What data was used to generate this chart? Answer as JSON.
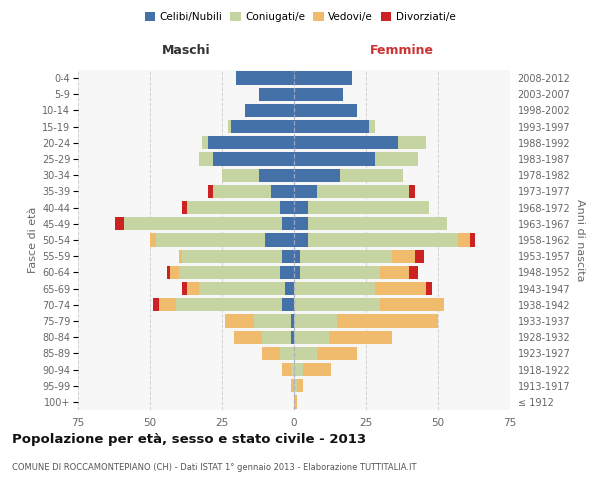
{
  "age_groups": [
    "100+",
    "95-99",
    "90-94",
    "85-89",
    "80-84",
    "75-79",
    "70-74",
    "65-69",
    "60-64",
    "55-59",
    "50-54",
    "45-49",
    "40-44",
    "35-39",
    "30-34",
    "25-29",
    "20-24",
    "15-19",
    "10-14",
    "5-9",
    "0-4"
  ],
  "birth_years": [
    "≤ 1912",
    "1913-1917",
    "1918-1922",
    "1923-1927",
    "1928-1932",
    "1933-1937",
    "1938-1942",
    "1943-1947",
    "1948-1952",
    "1953-1957",
    "1958-1962",
    "1963-1967",
    "1968-1972",
    "1973-1977",
    "1978-1982",
    "1983-1987",
    "1988-1992",
    "1993-1997",
    "1998-2002",
    "2003-2007",
    "2008-2012"
  ],
  "colors": {
    "celibi": "#4472a8",
    "coniugati": "#c5d4a0",
    "vedovi": "#f0bb6c",
    "divorziati": "#cc2222"
  },
  "male": {
    "celibi": [
      0,
      0,
      0,
      0,
      1,
      1,
      4,
      3,
      5,
      4,
      10,
      4,
      5,
      8,
      12,
      28,
      30,
      22,
      17,
      12,
      20
    ],
    "coniugati": [
      0,
      0,
      1,
      5,
      10,
      13,
      37,
      30,
      35,
      35,
      38,
      55,
      32,
      20,
      13,
      5,
      2,
      1,
      0,
      0,
      0
    ],
    "vedovi": [
      0,
      1,
      3,
      6,
      10,
      10,
      6,
      4,
      3,
      1,
      2,
      0,
      0,
      0,
      0,
      0,
      0,
      0,
      0,
      0,
      0
    ],
    "divorziati": [
      0,
      0,
      0,
      0,
      0,
      0,
      2,
      2,
      1,
      0,
      0,
      3,
      2,
      2,
      0,
      0,
      0,
      0,
      0,
      0,
      0
    ]
  },
  "female": {
    "celibi": [
      0,
      0,
      0,
      0,
      0,
      0,
      0,
      0,
      2,
      2,
      5,
      5,
      5,
      8,
      16,
      28,
      36,
      26,
      22,
      17,
      20
    ],
    "coniugati": [
      0,
      1,
      3,
      8,
      12,
      15,
      30,
      28,
      28,
      32,
      52,
      48,
      42,
      32,
      22,
      15,
      10,
      2,
      0,
      0,
      0
    ],
    "vedovi": [
      1,
      2,
      10,
      14,
      22,
      35,
      22,
      18,
      10,
      8,
      4,
      0,
      0,
      0,
      0,
      0,
      0,
      0,
      0,
      0,
      0
    ],
    "divorziati": [
      0,
      0,
      0,
      0,
      0,
      0,
      0,
      2,
      3,
      3,
      2,
      0,
      0,
      2,
      0,
      0,
      0,
      0,
      0,
      0,
      0
    ]
  },
  "xlim": 75,
  "title": "Popolazione per età, sesso e stato civile - 2013",
  "subtitle": "COMUNE DI ROCCAMONTEPIANO (CH) - Dati ISTAT 1° gennaio 2013 - Elaborazione TUTTITALIA.IT",
  "xlabel_left": "Maschi",
  "xlabel_right": "Femmine",
  "ylabel_left": "Fasce di età",
  "ylabel_right": "Anni di nascita",
  "legend_labels": [
    "Celibi/Nubili",
    "Coniugati/e",
    "Vedovi/e",
    "Divorziati/e"
  ],
  "bg_color": "#f7f7f7",
  "grid_color": "#cccccc"
}
